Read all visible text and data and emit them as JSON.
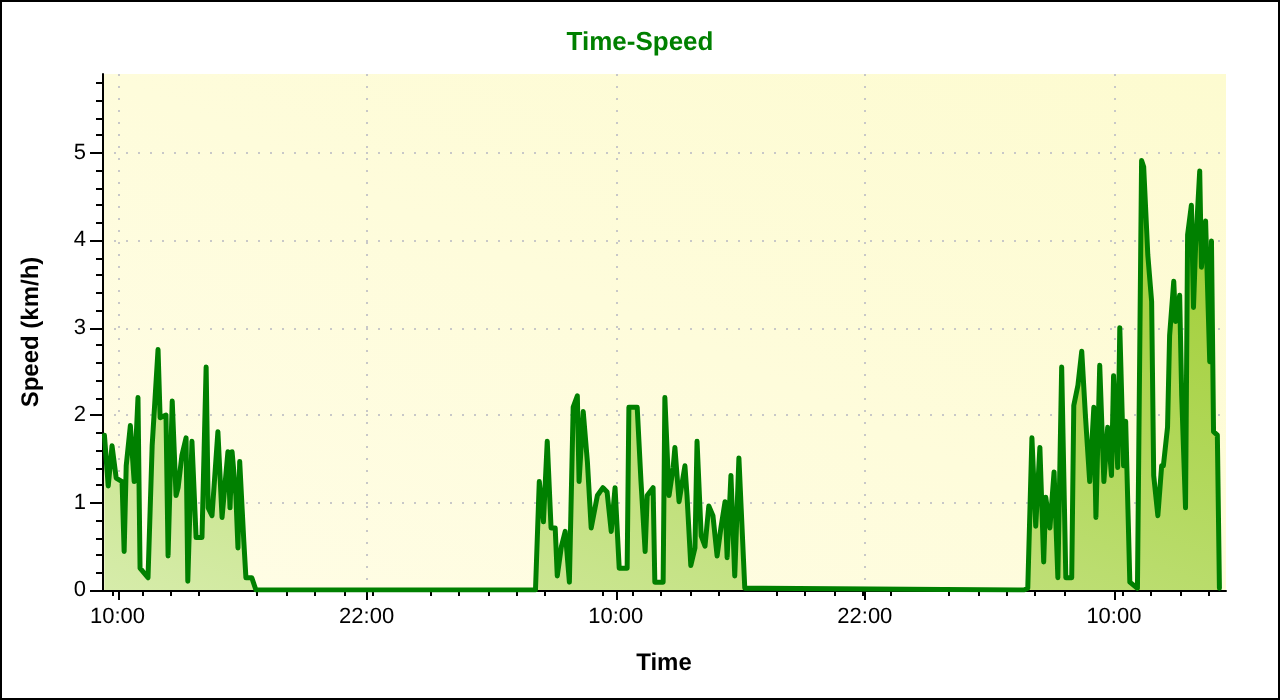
{
  "chart_data": {
    "type": "area",
    "title": "Time-Speed",
    "xlabel": "Time",
    "ylabel": "Speed (km/h)",
    "xlim": [
      "--01-01T09:15",
      "--01-03T15:24"
    ],
    "xticks": [
      {
        "value": "--01-01T10:00",
        "label": "10:00"
      },
      {
        "value": "--01-01T22:00",
        "label": "22:00"
      },
      {
        "value": "--01-02T10:00",
        "label": "10:00"
      },
      {
        "value": "--01-02T22:00",
        "label": "22:00"
      },
      {
        "value": "--01-03T10:00",
        "label": "10:00"
      }
    ],
    "ylim": [
      0,
      5.9
    ],
    "yticks": [
      0,
      1,
      2,
      3,
      4,
      5
    ],
    "grid": true,
    "marker": "none",
    "line_style": "solid",
    "series": [
      {
        "color": "#008000",
        "x": [
          "--01-01T09:22",
          "--01-01T09:33",
          "--01-01T09:44",
          "--01-01T09:56",
          "--01-01T10:13",
          "--01-01T10:19",
          "--01-01T10:25",
          "--01-01T10:37",
          "--01-01T10:48",
          "--01-01T10:59",
          "--01-01T11:05",
          "--01-01T11:28",
          "--01-01T11:40",
          "--01-01T11:57",
          "--01-01T12:03",
          "--01-01T12:20",
          "--01-01T12:26",
          "--01-01T12:38",
          "--01-01T12:49",
          "--01-01T12:55",
          "--01-01T13:06",
          "--01-01T13:18",
          "--01-01T13:23",
          "--01-01T13:35",
          "--01-01T13:47",
          "--01-01T14:04",
          "--01-01T14:16",
          "--01-01T14:22",
          "--01-01T14:33",
          "--01-01T14:50",
          "--01-01T15:02",
          "--01-01T15:19",
          "--01-01T15:25",
          "--01-01T15:31",
          "--01-01T15:42",
          "--01-01T15:48",
          "--01-01T15:53",
          "--01-01T16:05",
          "--01-01T16:11",
          "--01-01T16:28",
          "--01-01T16:40",
          "--01-02T06:08",
          "--01-02T06:19",
          "--01-02T06:31",
          "--01-02T06:42",
          "--01-02T06:53",
          "--01-02T07:05",
          "--01-02T07:11",
          "--01-02T07:23",
          "--01-02T07:34",
          "--01-02T07:46",
          "--01-02T07:57",
          "--01-02T08:09",
          "--01-02T08:14",
          "--01-02T08:26",
          "--01-02T08:38",
          "--01-02T08:49",
          "--01-02T09:07",
          "--01-02T09:23",
          "--01-02T09:35",
          "--01-02T09:47",
          "--01-02T09:58",
          "--01-02T10:10",
          "--01-02T10:33",
          "--01-02T10:38",
          "--01-02T11:02",
          "--01-02T11:13",
          "--01-02T11:25",
          "--01-02T11:31",
          "--01-02T11:48",
          "--01-02T11:53",
          "--01-02T12:17",
          "--01-02T12:22",
          "--01-02T12:34",
          "--01-02T12:46",
          "--01-02T12:51",
          "--01-02T13:03",
          "--01-02T13:20",
          "--01-02T13:26",
          "--01-02T13:37",
          "--01-02T13:49",
          "--01-02T13:55",
          "--01-02T14:07",
          "--01-02T14:18",
          "--01-02T14:29",
          "--01-02T14:41",
          "--01-02T14:53",
          "--01-02T15:04",
          "--01-02T15:16",
          "--01-02T15:22",
          "--01-02T15:33",
          "--01-02T15:44",
          "--01-02T15:56",
          "--01-02T16:13",
          "--01-03T05:40",
          "--01-03T05:51",
          "--01-03T06:03",
          "--01-03T06:14",
          "--01-03T06:26",
          "--01-03T06:37",
          "--01-03T06:43",
          "--01-03T06:55",
          "--01-03T07:07",
          "--01-03T07:18",
          "--01-03T07:29",
          "--01-03T07:41",
          "--01-03T07:58",
          "--01-03T08:04",
          "--01-03T08:16",
          "--01-03T08:27",
          "--01-03T08:38",
          "--01-03T08:50",
          "--01-03T09:02",
          "--01-03T09:08",
          "--01-03T09:19",
          "--01-03T09:31",
          "--01-03T09:42",
          "--01-03T09:53",
          "--01-03T09:59",
          "--01-03T10:11",
          "--01-03T10:17",
          "--01-03T10:28",
          "--01-03T10:34",
          "--01-03T10:46",
          "--01-03T11:08",
          "--01-03T11:20",
          "--01-03T11:26",
          "--01-03T11:38",
          "--01-03T11:49",
          "--01-03T11:55",
          "--01-03T12:07",
          "--01-03T12:18",
          "--01-03T12:23",
          "--01-03T12:35",
          "--01-03T12:41",
          "--01-03T12:53",
          "--01-03T12:58",
          "--01-03T13:10",
          "--01-03T13:16",
          "--01-03T13:27",
          "--01-03T13:33",
          "--01-03T13:44",
          "--01-03T13:50",
          "--01-03T13:56",
          "--01-03T14:08",
          "--01-03T14:13",
          "--01-03T14:25",
          "--01-03T14:37",
          "--01-03T14:42",
          "--01-03T14:48",
          "--01-03T14:59",
          "--01-03T15:05"
        ],
        "values": [
          1.77,
          1.19,
          1.65,
          1.28,
          1.24,
          0.44,
          1.42,
          1.88,
          1.24,
          2.2,
          0.25,
          0.14,
          1.65,
          2.75,
          1.97,
          2.0,
          0.39,
          2.16,
          1.08,
          1.17,
          1.54,
          1.74,
          0.1,
          1.7,
          0.6,
          0.6,
          2.55,
          0.94,
          0.85,
          1.81,
          0.83,
          1.58,
          0.94,
          1.58,
          1.08,
          0.48,
          1.47,
          0.55,
          0.14,
          0.14,
          0,
          0,
          1.24,
          0.78,
          1.7,
          0.71,
          0.71,
          0.16,
          0.5,
          0.67,
          0.09,
          2.09,
          2.22,
          1.24,
          2.04,
          1.47,
          0.71,
          1.08,
          1.17,
          1.12,
          0.67,
          1.17,
          0.25,
          0.25,
          2.09,
          2.09,
          1.24,
          0.44,
          1.08,
          1.17,
          0.09,
          0.09,
          2.2,
          1.08,
          1.4,
          1.63,
          1.01,
          1.42,
          1.08,
          0.28,
          0.48,
          1.7,
          0.62,
          0.5,
          0.96,
          0.85,
          0.39,
          0.71,
          1.01,
          0.37,
          1.31,
          0.16,
          1.51,
          0.02,
          0,
          0.02,
          1.74,
          0.73,
          1.63,
          0.32,
          1.06,
          0.71,
          1.35,
          0.14,
          2.55,
          0.14,
          0.14,
          2.11,
          2.34,
          2.73,
          1.97,
          1.24,
          2.09,
          0.83,
          2.57,
          1.24,
          1.86,
          1.31,
          2.45,
          1.4,
          3.0,
          1.42,
          1.93,
          0.09,
          0.02,
          4.91,
          4.84,
          3.83,
          3.3,
          1.31,
          0.85,
          1.42,
          1.42,
          1.86,
          2.91,
          3.53,
          3.07,
          3.37,
          2.22,
          0.94,
          4.06,
          4.4,
          3.23,
          3.92,
          4.79,
          3.69,
          4.22,
          2.61,
          3.99,
          1.81,
          1.77,
          0.02
        ]
      }
    ]
  }
}
